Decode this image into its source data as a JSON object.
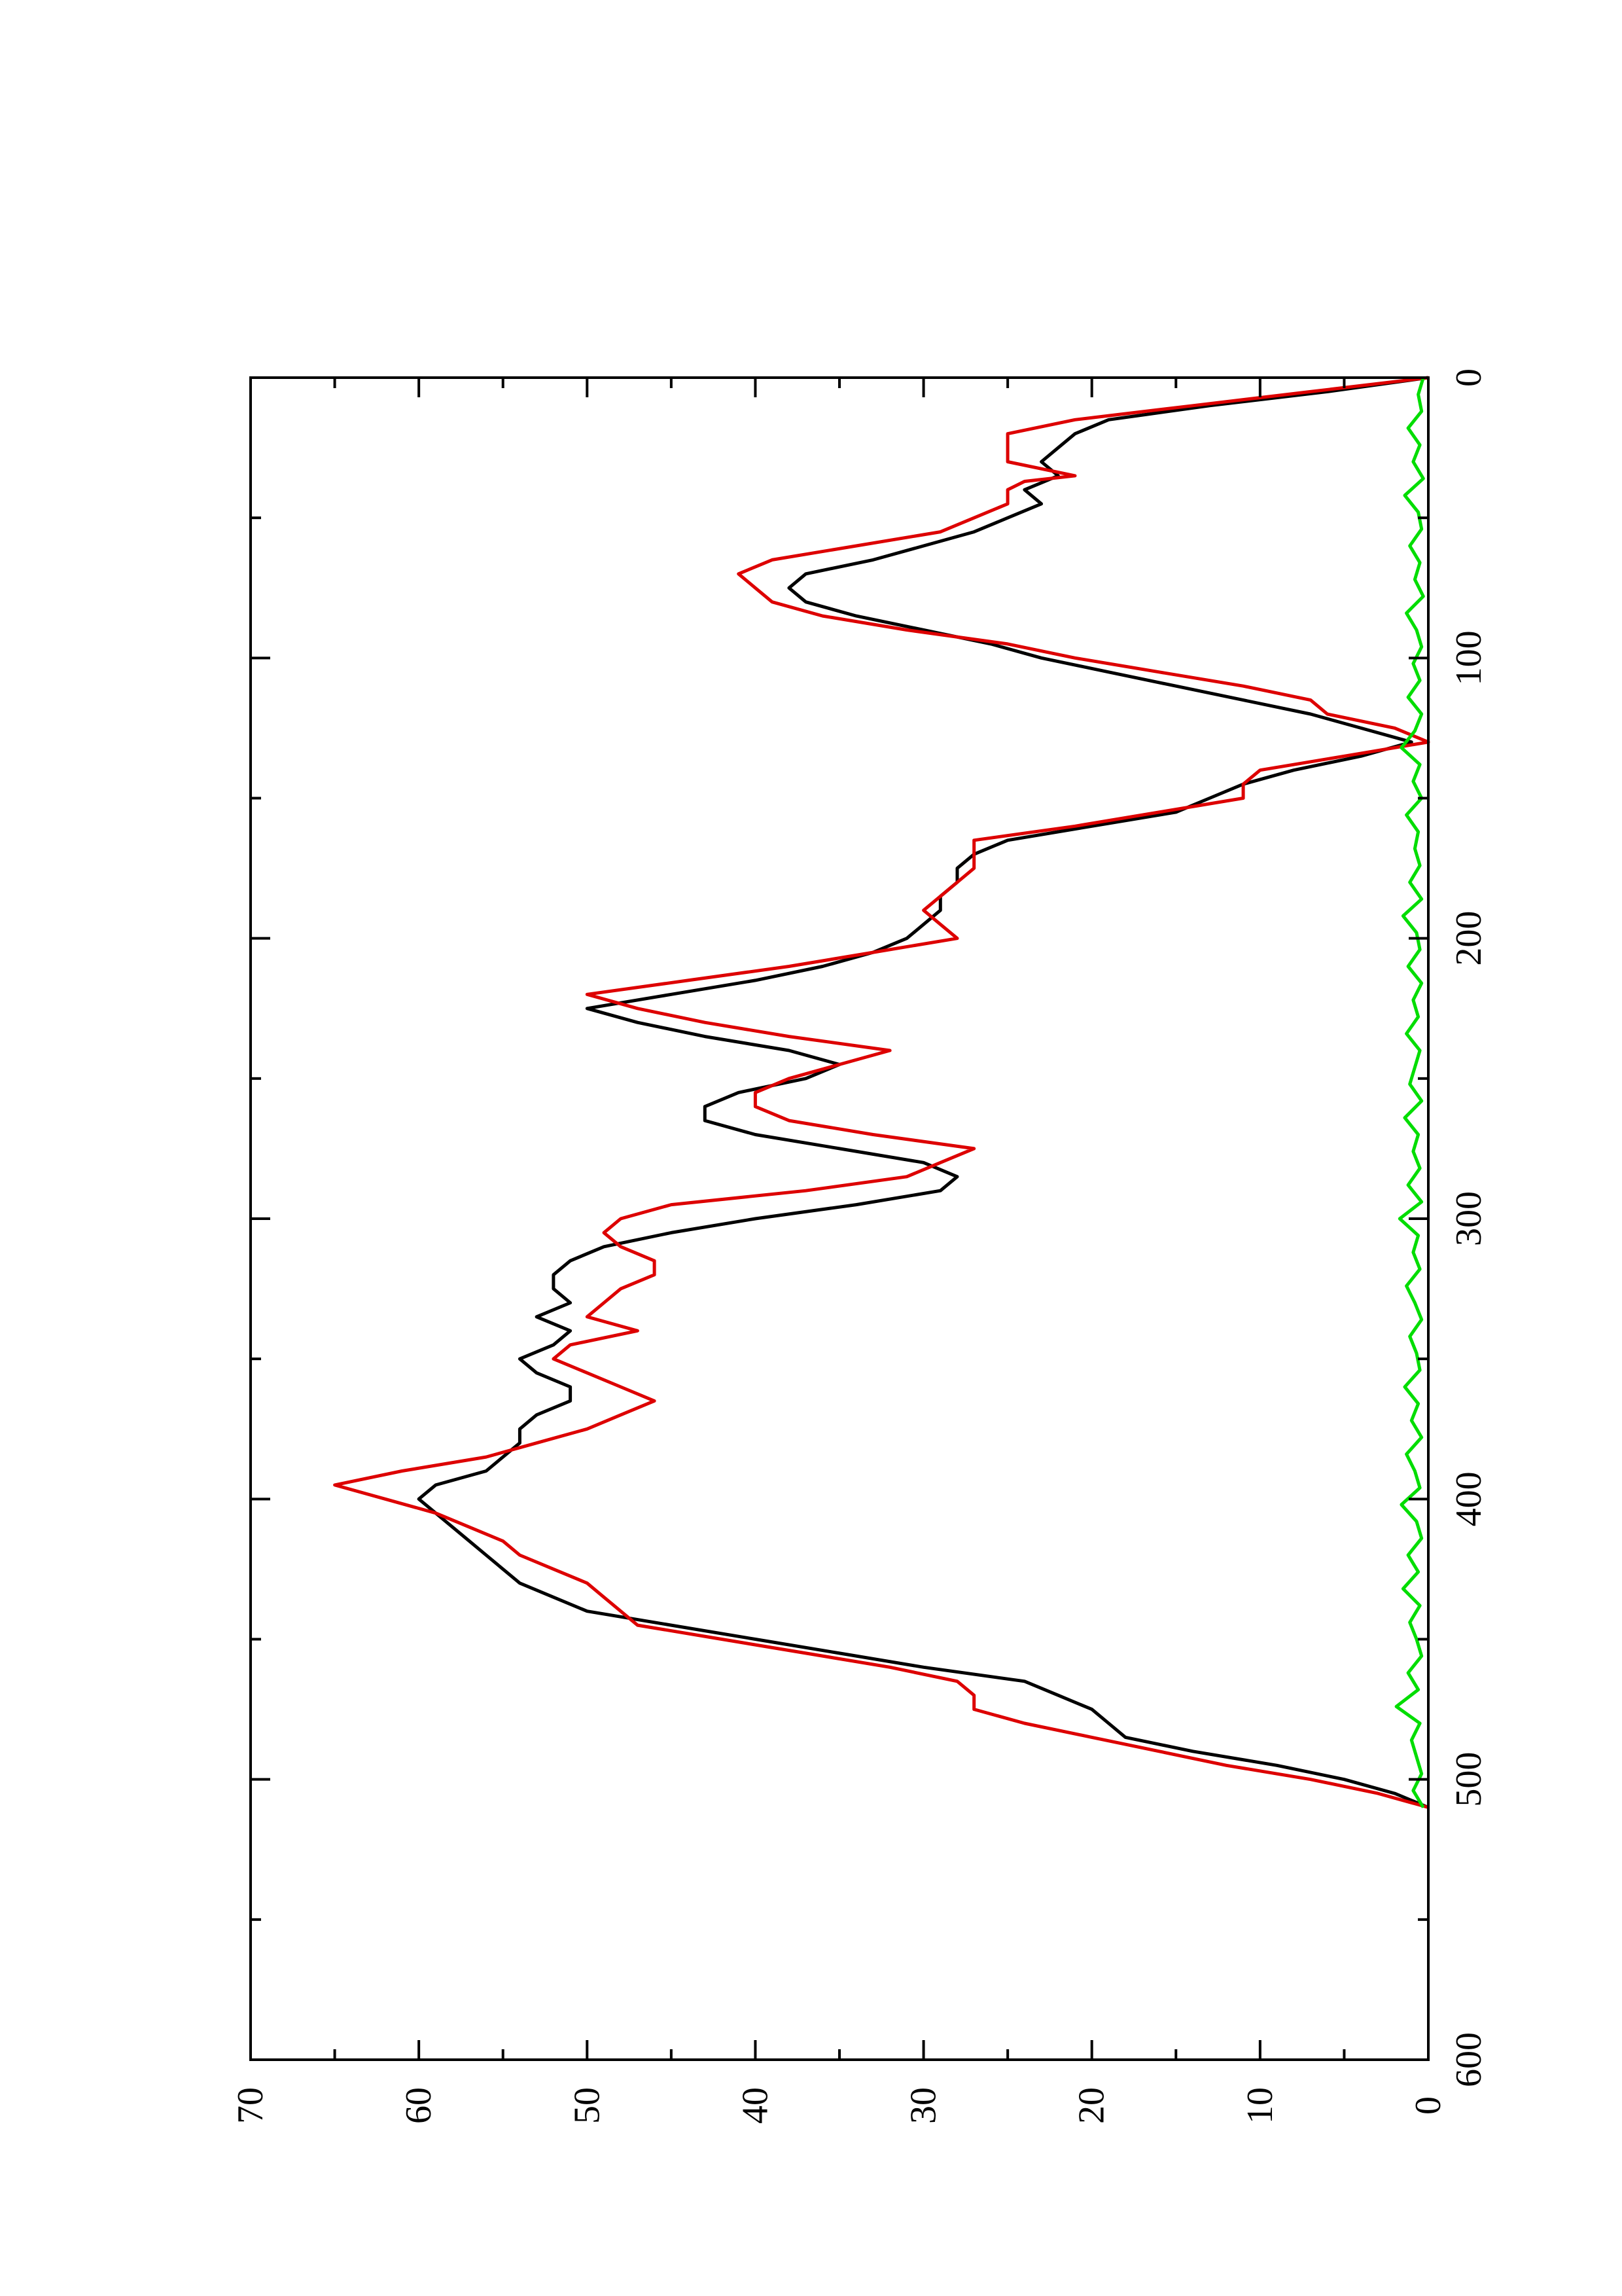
{
  "chart_data": {
    "type": "line",
    "orientation": "rotated-90-clockwise",
    "title": "",
    "xlabel": "",
    "ylabel": "",
    "xlim": [
      0,
      600
    ],
    "ylim": [
      0,
      70
    ],
    "x_ticks": [
      "0",
      "100",
      "200",
      "300",
      "400",
      "500",
      "600"
    ],
    "y_ticks": [
      "0",
      "10",
      "20",
      "30",
      "40",
      "50",
      "60",
      "70"
    ],
    "grid": false,
    "legend": "none",
    "series": [
      {
        "color": "#000000",
        "x": [
          0,
          5,
          10,
          15,
          20,
          25,
          30,
          35,
          40,
          45,
          50,
          55,
          60,
          65,
          70,
          75,
          80,
          85,
          90,
          95,
          100,
          105,
          110,
          115,
          120,
          125,
          130,
          135,
          140,
          145,
          150,
          155,
          160,
          165,
          170,
          175,
          180,
          185,
          190,
          195,
          200,
          205,
          210,
          215,
          220,
          225,
          230,
          235,
          240,
          245,
          250,
          255,
          260,
          265,
          270,
          275,
          280,
          285,
          290,
          295,
          300,
          305,
          310,
          315,
          320,
          325,
          330,
          335,
          340,
          345,
          350,
          355,
          360,
          365,
          370,
          375,
          380,
          385,
          390,
          395,
          400,
          405,
          410,
          415,
          420,
          425,
          430,
          435,
          440,
          445,
          450,
          455,
          460,
          465,
          470,
          475,
          480,
          485,
          490,
          495,
          500,
          505,
          510
        ],
        "y": [
          0,
          6,
          13,
          19,
          21,
          22,
          23,
          22,
          24,
          23,
          25,
          27,
          30,
          33,
          37,
          38,
          37,
          34,
          30,
          26,
          23,
          19,
          15,
          11,
          7,
          4,
          1,
          4,
          8,
          11,
          13,
          15,
          20,
          25,
          27,
          28,
          28,
          29,
          29,
          30,
          31,
          33,
          36,
          40,
          45,
          50,
          47,
          43,
          38,
          35,
          37,
          41,
          43,
          43,
          40,
          35,
          30,
          28,
          29,
          34,
          40,
          45,
          49,
          51,
          52,
          52,
          51,
          53,
          51,
          52,
          54,
          53,
          51,
          51,
          53,
          54,
          54,
          55,
          56,
          59,
          60,
          59,
          58,
          57,
          56,
          55,
          54,
          52,
          50,
          45,
          40,
          35,
          30,
          24,
          22,
          20,
          19,
          18,
          14,
          9,
          5,
          2,
          0
        ]
      },
      {
        "color": "#dd0000",
        "x": [
          0,
          5,
          10,
          15,
          20,
          25,
          30,
          35,
          37,
          40,
          45,
          50,
          55,
          60,
          65,
          70,
          75,
          80,
          85,
          90,
          95,
          100,
          105,
          110,
          115,
          120,
          125,
          130,
          135,
          140,
          145,
          150,
          155,
          160,
          165,
          170,
          175,
          180,
          185,
          190,
          195,
          200,
          205,
          210,
          215,
          220,
          225,
          230,
          235,
          240,
          245,
          250,
          255,
          260,
          265,
          270,
          275,
          280,
          285,
          290,
          295,
          300,
          305,
          310,
          315,
          320,
          325,
          330,
          335,
          340,
          345,
          350,
          355,
          360,
          365,
          370,
          375,
          380,
          385,
          390,
          395,
          400,
          405,
          410,
          415,
          420,
          425,
          430,
          435,
          440,
          445,
          450,
          455,
          460,
          465,
          470,
          475,
          480,
          485,
          490,
          495,
          500,
          505,
          510
        ],
        "y": [
          0,
          7,
          14,
          21,
          25,
          25,
          25,
          21,
          24,
          25,
          25,
          27,
          29,
          34,
          39,
          41,
          40,
          39,
          36,
          31,
          25,
          21,
          16,
          11,
          7,
          6,
          2,
          0,
          5,
          10,
          11,
          11,
          16,
          21,
          27,
          27,
          27,
          28,
          29,
          30,
          29,
          28,
          33,
          38,
          44,
          50,
          47,
          43,
          38,
          32,
          35,
          38,
          40,
          40,
          38,
          33,
          27,
          29,
          31,
          37,
          45,
          48,
          49,
          48,
          46,
          46,
          48,
          49,
          50,
          47,
          51,
          52,
          50,
          48,
          46,
          48,
          50,
          53,
          56,
          61,
          65,
          62,
          59,
          57,
          55,
          54,
          52,
          50,
          49,
          48,
          47,
          42,
          37,
          32,
          28,
          27,
          27,
          24,
          20,
          16,
          12,
          7,
          3,
          0
        ]
      },
      {
        "color": "#00dd00",
        "x": [
          0,
          6,
          12,
          18,
          24,
          30,
          36,
          42,
          48,
          54,
          60,
          66,
          72,
          78,
          84,
          90,
          96,
          102,
          108,
          114,
          120,
          126,
          132,
          138,
          144,
          150,
          156,
          162,
          168,
          174,
          180,
          186,
          192,
          198,
          204,
          210,
          216,
          222,
          228,
          234,
          240,
          246,
          252,
          258,
          264,
          270,
          276,
          282,
          288,
          294,
          300,
          306,
          312,
          318,
          324,
          330,
          336,
          342,
          348,
          354,
          360,
          366,
          372,
          378,
          384,
          390,
          396,
          402,
          408,
          414,
          420,
          426,
          432,
          438,
          444,
          450,
          456,
          462,
          468,
          474,
          480,
          486,
          492,
          498,
          504,
          510
        ],
        "y": [
          0.3,
          0.6,
          0.4,
          1.2,
          0.5,
          0.9,
          0.3,
          1.4,
          0.6,
          0.4,
          1.1,
          0.5,
          0.8,
          0.3,
          1.3,
          0.7,
          0.4,
          0.9,
          0.5,
          1.2,
          0.4,
          0.8,
          1.6,
          0.5,
          0.9,
          0.4,
          1.3,
          0.6,
          0.8,
          0.5,
          1.1,
          0.4,
          1.5,
          0.7,
          0.5,
          1.2,
          0.4,
          0.9,
          0.6,
          1.3,
          0.5,
          0.8,
          1.1,
          0.4,
          1.4,
          0.6,
          0.9,
          0.5,
          1.2,
          0.4,
          1.7,
          0.6,
          0.9,
          0.5,
          1.3,
          0.8,
          0.4,
          1.1,
          0.7,
          0.5,
          1.4,
          0.6,
          1.0,
          0.4,
          1.3,
          0.8,
          0.5,
          1.6,
          0.7,
          0.4,
          1.2,
          0.6,
          1.5,
          0.5,
          1.1,
          0.7,
          0.4,
          1.2,
          0.6,
          1.9,
          0.5,
          1.0,
          0.7,
          0.4,
          0.9,
          0.3
        ]
      }
    ]
  }
}
